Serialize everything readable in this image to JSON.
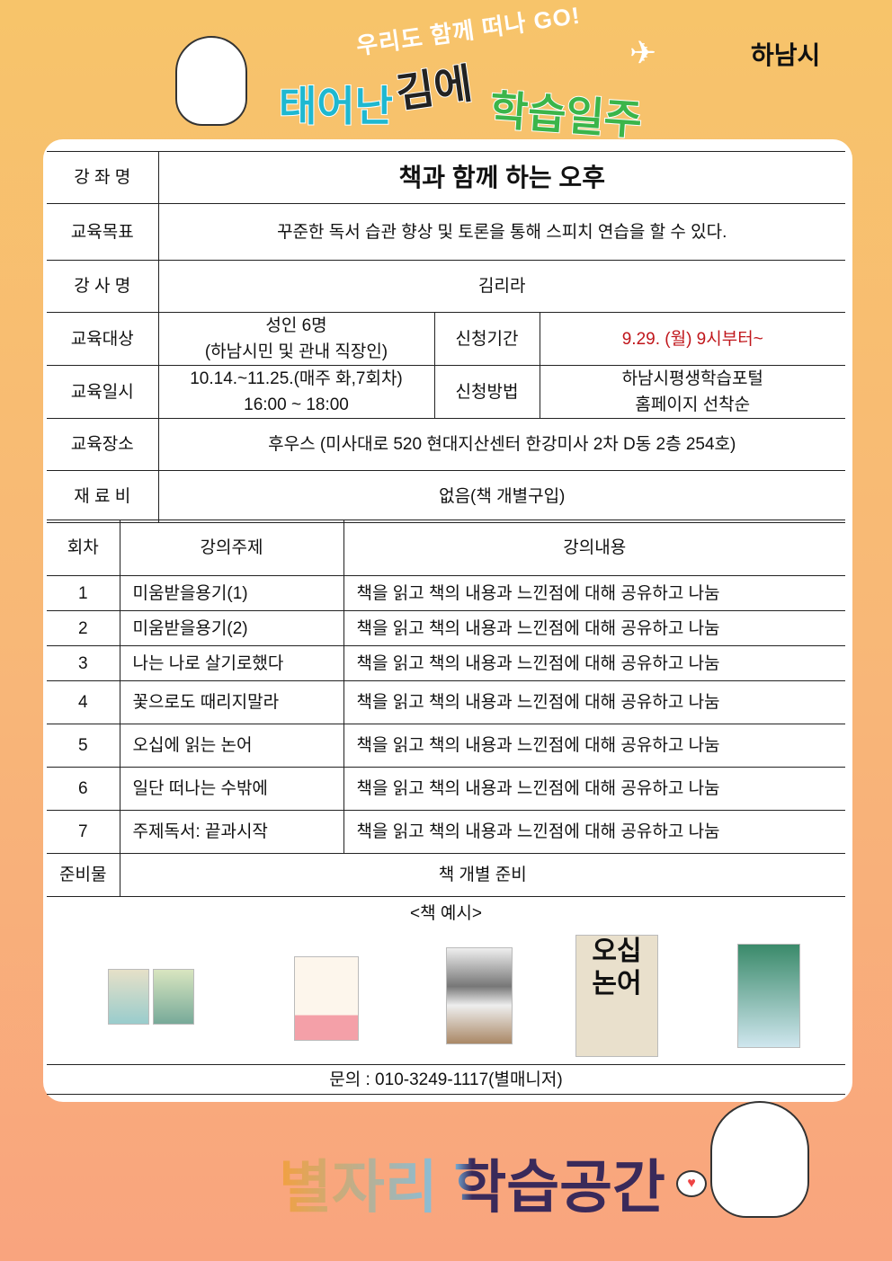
{
  "header": {
    "slogan": "우리도 함께 떠나 GO!",
    "title_parts": [
      "태어난",
      "김에",
      "학습일주"
    ],
    "logo": "하남시"
  },
  "info": {
    "course_label": "강 좌 명",
    "course": "책과 함께 하는 오후",
    "goal_label": "교육목표",
    "goal": "꾸준한 독서 습관 향상 및 토론을 통해 스피치 연습을 할 수 있다.",
    "instructor_label": "강 사 명",
    "instructor": "김리라",
    "target_label": "교육대상",
    "target_line1": "성인 6명",
    "target_line2": "(하남시민 및 관내 직장인)",
    "period_label": "신청기간",
    "period": "9.29. (월) 9시부터~",
    "schedule_label": "교육일시",
    "schedule_line1": "10.14.~11.25.(매주 화,7회차)",
    "schedule_line2": "16:00 ~ 18:00",
    "method_label": "신청방법",
    "method_line1": "하남시평생학습포털",
    "method_line2": "홈페이지 선착순",
    "place_label": "교육장소",
    "place": "후우스 (미사대로 520 현대지산센터 한강미사 2차 D동 2층 254호)",
    "fee_label": "재 료 비",
    "fee": "없음(책 개별구입)"
  },
  "sessions": {
    "headers": [
      "회차",
      "강의주제",
      "강의내용"
    ],
    "rows": [
      [
        "1",
        "미움받을용기(1)",
        "책을 읽고 책의 내용과 느낀점에 대해 공유하고 나눔"
      ],
      [
        "2",
        "미움받을용기(2)",
        "책을 읽고 책의 내용과 느낀점에 대해 공유하고 나눔"
      ],
      [
        "3",
        "나는 나로 살기로했다",
        "책을 읽고 책의 내용과 느낀점에 대해 공유하고 나눔"
      ],
      [
        "4",
        "꽃으로도 때리지말라",
        "책을 읽고 책의 내용과 느낀점에 대해 공유하고 나눔"
      ],
      [
        "5",
        "오십에 읽는 논어",
        "책을 읽고 책의 내용과 느낀점에 대해 공유하고 나눔"
      ],
      [
        "6",
        "일단 떠나는 수밖에",
        "책을 읽고 책의 내용과 느낀점에 대해 공유하고 나눔"
      ],
      [
        "7",
        "주제독서: 끝과시작",
        "책을 읽고 책의 내용과 느낀점에 대해 공유하고 나눔"
      ]
    ],
    "supplies_label": "준비물",
    "supplies": "책 개별 준비",
    "book_example": "<책 예시>",
    "contact": "문의 : 010-3249-1117(별매니저)"
  },
  "footer": {
    "title": "별자리 학습공간"
  },
  "colors": {
    "accent_red": "#c0161b",
    "title_cyan": "#1fb8d0",
    "title_green": "#3bb54a"
  }
}
